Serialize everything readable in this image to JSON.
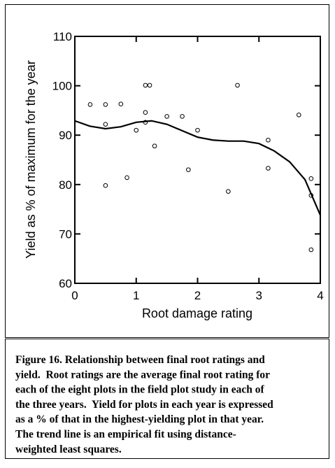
{
  "chart_data": {
    "type": "scatter",
    "x_label": "Root damage rating",
    "y_label": "Yield as % of maximum for the year",
    "xlim": [
      0,
      4
    ],
    "ylim": [
      60,
      110
    ],
    "xticks": [
      0,
      1,
      2,
      3,
      4
    ],
    "yticks": [
      60,
      70,
      80,
      90,
      100,
      110
    ],
    "series": [
      {
        "color": "#000000",
        "marker": "open-circle",
        "x": [
          0.25,
          0.5,
          0.5,
          0.5,
          0.75,
          0.85,
          1.0,
          1.15,
          1.22,
          1.15,
          1.15,
          1.3,
          1.5,
          1.75,
          1.85,
          2.0,
          2.5,
          2.65,
          3.15,
          3.15,
          3.65,
          3.85,
          3.85,
          3.85
        ],
        "values": [
          96.2,
          96.2,
          92.2,
          79.8,
          96.3,
          81.4,
          91.0,
          100.1,
          100.1,
          94.6,
          92.6,
          87.8,
          93.8,
          93.8,
          83.0,
          91.0,
          78.6,
          100.1,
          89.0,
          83.3,
          94.1,
          81.2,
          77.8,
          66.8
        ]
      },
      {
        "color": "#000000",
        "marker": "line",
        "x": [
          0,
          0.25,
          0.5,
          0.75,
          1,
          1.25,
          1.5,
          1.75,
          2,
          2.25,
          2.5,
          2.75,
          3,
          3.25,
          3.5,
          3.75,
          4
        ],
        "values": [
          92.9,
          91.8,
          91.3,
          91.7,
          92.6,
          92.9,
          92.2,
          90.9,
          89.6,
          89.0,
          88.8,
          88.8,
          88.3,
          86.8,
          84.6,
          81.0,
          73.8
        ]
      }
    ]
  },
  "caption": [
    "Figure 16. Relationship between final root ratings and",
    "yield.  Root ratings are the average final root rating for",
    "each of the eight plots in the field plot study in each of",
    "the three years.  Yield for plots in each year is expressed",
    "as a % of that in the highest-yielding plot in that year.",
    "The trend line is an empirical fit using distance-",
    "weighted least squares."
  ]
}
